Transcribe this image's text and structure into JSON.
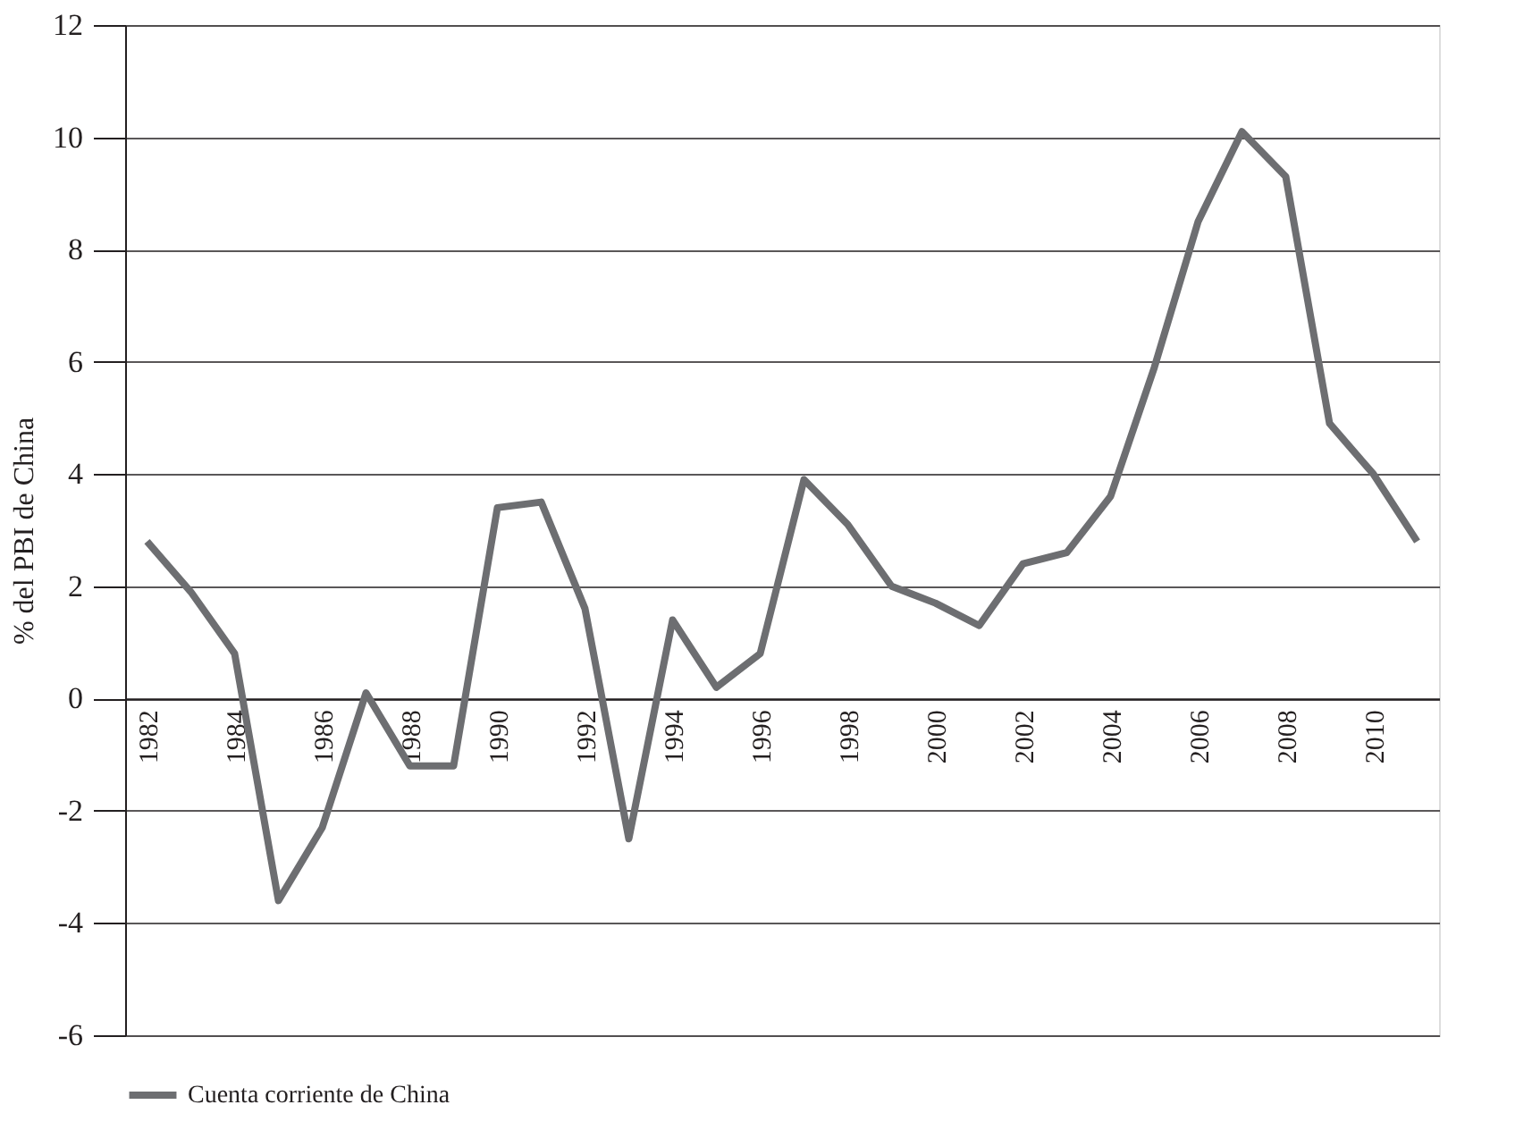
{
  "chart_data": {
    "type": "line",
    "ylabel": "% del PBI de China",
    "categories": [
      "1982",
      null,
      "1984",
      null,
      "1986",
      null,
      "1988",
      null,
      "1990",
      null,
      "1992",
      null,
      "1994",
      null,
      "1996",
      null,
      "1998",
      null,
      "2000",
      null,
      "2002",
      null,
      "2004",
      null,
      "2006",
      null,
      "2008",
      null,
      "2010",
      null
    ],
    "series": [
      {
        "name": "Cuenta corriente de China",
        "color": "#6d6e71",
        "values": [
          2.8,
          1.9,
          0.8,
          -3.6,
          -2.3,
          0.1,
          -1.2,
          -1.2,
          3.4,
          3.5,
          1.6,
          -2.5,
          1.4,
          0.2,
          0.8,
          3.9,
          3.1,
          2.0,
          1.7,
          1.3,
          2.4,
          2.6,
          3.6,
          5.9,
          8.5,
          10.1,
          9.3,
          4.9,
          4.0,
          2.8
        ]
      }
    ],
    "ylim": [
      -6,
      12
    ],
    "yticks": [
      -6,
      -4,
      -2,
      0,
      2,
      4,
      6,
      8,
      10,
      12
    ],
    "grid": "y",
    "legend": "bottom",
    "marker": "none",
    "line_style": "solid"
  }
}
